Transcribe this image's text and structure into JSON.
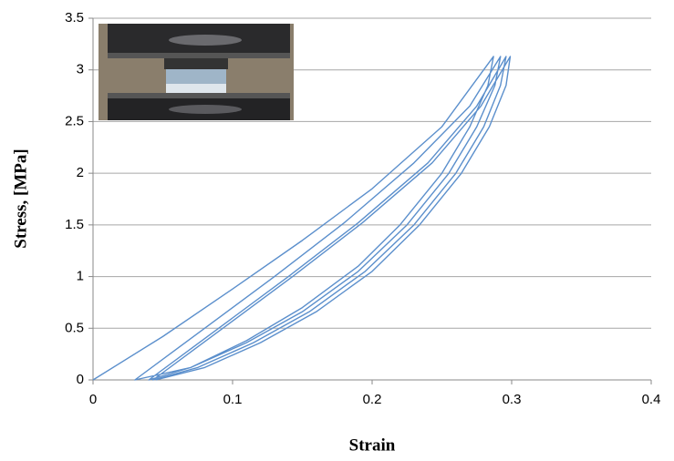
{
  "chart_data": {
    "type": "line",
    "x_label": "Strain",
    "y_label": "Stress, [MPa]",
    "x": [
      0,
      0.05,
      0.1,
      0.15,
      0.2,
      0.25,
      0.287,
      0.283,
      0.27,
      0.25,
      0.22,
      0.19,
      0.15,
      0.11,
      0.07,
      0.03,
      0.08,
      0.13,
      0.18,
      0.23,
      0.27,
      0.292,
      0.288,
      0.275,
      0.255,
      0.225,
      0.19,
      0.15,
      0.11,
      0.07,
      0.04,
      0.09,
      0.14,
      0.19,
      0.24,
      0.275,
      0.296,
      0.292,
      0.28,
      0.26,
      0.23,
      0.195,
      0.155,
      0.115,
      0.075,
      0.043,
      0.093,
      0.143,
      0.193,
      0.243,
      0.278,
      0.299,
      0.296,
      0.284,
      0.264,
      0.234,
      0.2,
      0.16,
      0.12,
      0.08,
      0.045
    ],
    "values": [
      0,
      0.42,
      0.88,
      1.35,
      1.85,
      2.45,
      3.13,
      2.85,
      2.45,
      2.0,
      1.5,
      1.1,
      0.7,
      0.38,
      0.12,
      0,
      0.5,
      1.0,
      1.52,
      2.1,
      2.65,
      3.13,
      2.85,
      2.45,
      2.0,
      1.5,
      1.05,
      0.66,
      0.36,
      0.12,
      0,
      0.5,
      1.0,
      1.52,
      2.1,
      2.65,
      3.13,
      2.85,
      2.45,
      2.0,
      1.5,
      1.05,
      0.66,
      0.36,
      0.12,
      0,
      0.5,
      1.0,
      1.52,
      2.1,
      2.65,
      3.13,
      2.85,
      2.45,
      2.0,
      1.5,
      1.05,
      0.66,
      0.36,
      0.12,
      0
    ],
    "color": "#5b8fcc",
    "xlim": [
      0,
      0.4
    ],
    "xticks": [
      0,
      0.1,
      0.2,
      0.3,
      0.4
    ],
    "ylim": [
      0,
      3.5
    ],
    "yticks": [
      0,
      0.5,
      1,
      1.5,
      2,
      2.5,
      3,
      3.5
    ],
    "grid": true
  }
}
